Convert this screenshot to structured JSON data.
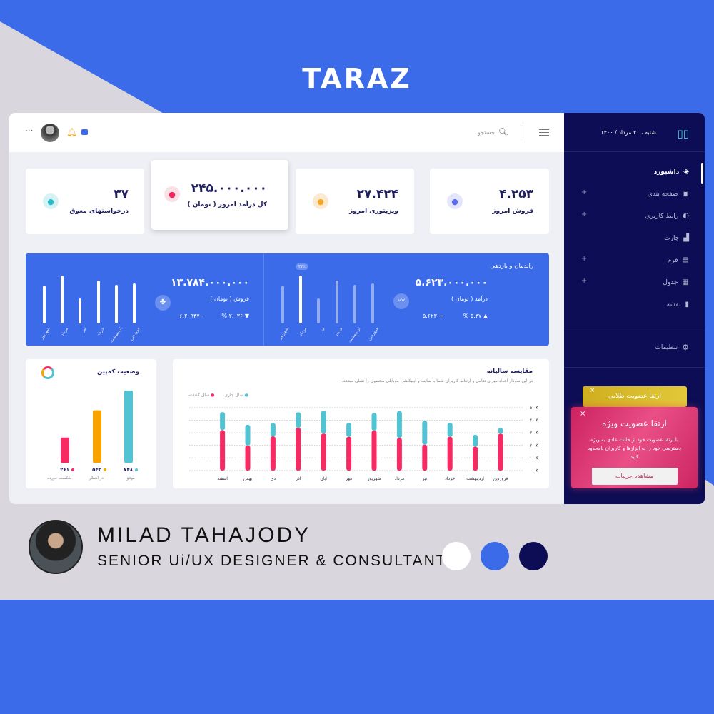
{
  "brand_title": "TARAZ",
  "header": {
    "search_placeholder": "جستجو",
    "more": "···"
  },
  "sidebar": {
    "date": "شنبه ، ۳۰ مرداد / ۱۴۰۰",
    "items": [
      {
        "label": "داشبورد",
        "icon": "layers-icon",
        "active": true,
        "expandable": false
      },
      {
        "label": "صفحه بندی",
        "icon": "layout-icon",
        "expandable": true
      },
      {
        "label": "رابط کاربری",
        "icon": "palette-icon",
        "expandable": true
      },
      {
        "label": "چارت",
        "icon": "chart-icon",
        "expandable": false
      },
      {
        "label": "فرم",
        "icon": "form-icon",
        "expandable": true
      },
      {
        "label": "جدول",
        "icon": "table-icon",
        "expandable": true
      },
      {
        "label": "نقشه",
        "icon": "map-icon",
        "expandable": false
      }
    ],
    "settings": "تنظیمات",
    "gold_card": {
      "title": "ارتقا عضویت طلایی"
    },
    "promo": {
      "title": "ارتقا عضویت ویژه",
      "text": "با ارتقا عضویت خود از حالت عادی به ویژه دسترسی خود را به ابزارها و کاربران نامحدود کنید",
      "button": "مشاهده جزییات",
      "close": "×"
    }
  },
  "stats": [
    {
      "value": "۴.۲۵۳",
      "label": "فروش امروز",
      "icon": "basket-icon",
      "color": "#5a6cf0",
      "bg": "#e3e6fc"
    },
    {
      "value": "۲۷.۴۲۴",
      "label": "ویزیتوری امروز",
      "icon": "bolt-icon",
      "color": "#f5a623",
      "bg": "#fbe9d2"
    },
    {
      "value": "۲۴۵.۰۰۰.۰۰۰",
      "label": "کل درآمد امروز ( تومان )",
      "icon": "coins-icon",
      "color": "#f0285f",
      "bg": "#fde0e7"
    },
    {
      "value": "۳۷",
      "label": "درخواستهای معوق",
      "icon": "timer-icon",
      "color": "#2bbcc9",
      "bg": "#d7f2f4"
    }
  ],
  "banner": {
    "title": "راندمان و بازدهی",
    "revenue": {
      "value": "۵.۶۲۳.۰۰۰.۰۰۰",
      "label": "درآمد ( تومان )",
      "change_pct": "۵.۴۷ %",
      "change_abs": "+ ۵.۶۲۳",
      "badge": "۳۲٪"
    },
    "sales": {
      "value": "۱۳.۷۸۴.۰۰۰.۰۰۰",
      "label": "فروش ( تومان )",
      "change_pct": "۲.۰۳۶ %",
      "change_abs": "- ۶.۲۰۹۴۷"
    },
    "months": [
      "شهریور",
      "مرداد",
      "تیر",
      "خرداد",
      "اردیبهشت",
      "فروردین"
    ],
    "levels_pct": [
      79,
      100,
      52,
      90,
      81,
      84
    ]
  },
  "chart_data": [
    {
      "type": "bar",
      "stacked": true,
      "title": "مقایسه سالیانه",
      "subtitle": "در این نمودار اعداد میزان تعامل و ارتباط کاربران شما با سایت و اپلیکیشن موبایلی محصول را نشان میدهد.",
      "categories": [
        "فروردین",
        "اردیبهشت",
        "خرداد",
        "تیر",
        "مرداد",
        "شهریور",
        "مهر",
        "آبان",
        "آذر",
        "دی",
        "بهمن",
        "اسفند"
      ],
      "series": [
        {
          "name": "سال گذشته",
          "color": "#f72a64",
          "values": [
            29.3,
            19.1,
            26.9,
            20.5,
            26,
            31.8,
            26.9,
            29.5,
            34,
            27.3,
            20,
            32.2
          ]
        },
        {
          "name": "سال جاری",
          "color": "#52c3d2",
          "values": [
            4.5,
            9.3,
            11.1,
            19.1,
            21.3,
            14,
            11.1,
            18,
            12.4,
            10.5,
            16.4,
            14.3
          ]
        }
      ],
      "yticks": [
        "۰ K",
        "۱۰ K",
        "۲۰ K",
        "۳۰ K",
        "۴۰ K",
        "۵۰ K"
      ],
      "ylim": [
        0,
        50
      ],
      "grid": true,
      "legend": "top-left"
    },
    {
      "type": "bar",
      "title": "وضعیت کمپین",
      "categories": [
        "موفق",
        "در انتظار",
        "شکست خورده"
      ],
      "values": [
        748,
        543,
        261
      ],
      "labels": [
        "۷۴۸",
        "۵۴۳",
        "۲۶۱"
      ],
      "colors": [
        "#52c3d2",
        "#f8a300",
        "#f72a64"
      ]
    }
  ],
  "profile": {
    "name": "MILAD TAHAJODY",
    "role": "SENIOR Ui/UX DESIGNER & CONSULTANT"
  },
  "palette": [
    "#ffffff",
    "#3b6be9",
    "#0c0d54"
  ]
}
